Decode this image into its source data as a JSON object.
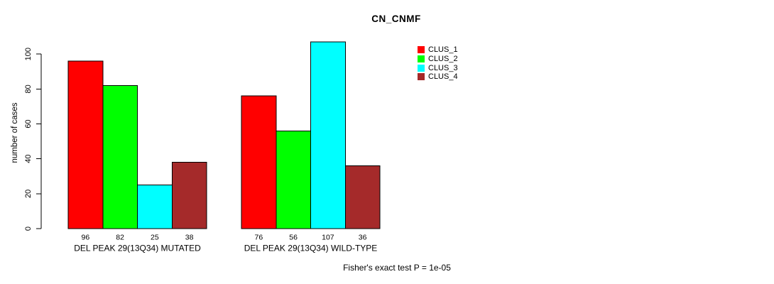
{
  "chart_data": {
    "type": "bar",
    "title": "CN_CNMF",
    "ylabel": "number of cases",
    "footer": "Fisher's exact test P = 1e-05",
    "ylim": [
      0,
      110
    ],
    "yticks": [
      0,
      20,
      40,
      60,
      80,
      100
    ],
    "grid": false,
    "legend_position": "right",
    "categories": [
      "DEL PEAK 29(13Q34) MUTATED",
      "DEL PEAK 29(13Q34) WILD-TYPE"
    ],
    "groups": [
      {
        "label": "DEL PEAK 29(13Q34) MUTATED",
        "values": [
          96,
          82,
          25,
          38
        ]
      },
      {
        "label": "DEL PEAK 29(13Q34) WILD-TYPE",
        "values": [
          76,
          56,
          107,
          36
        ]
      }
    ],
    "series": [
      {
        "name": "CLUS_1",
        "color": "#ff0000"
      },
      {
        "name": "CLUS_2",
        "color": "#00ff00"
      },
      {
        "name": "CLUS_3",
        "color": "#00ffff"
      },
      {
        "name": "CLUS_4",
        "color": "#a52a2a"
      }
    ],
    "colors": {
      "background": "#ffffff",
      "text": "#000000",
      "axis": "#000000",
      "bar_border": "#000000"
    }
  }
}
